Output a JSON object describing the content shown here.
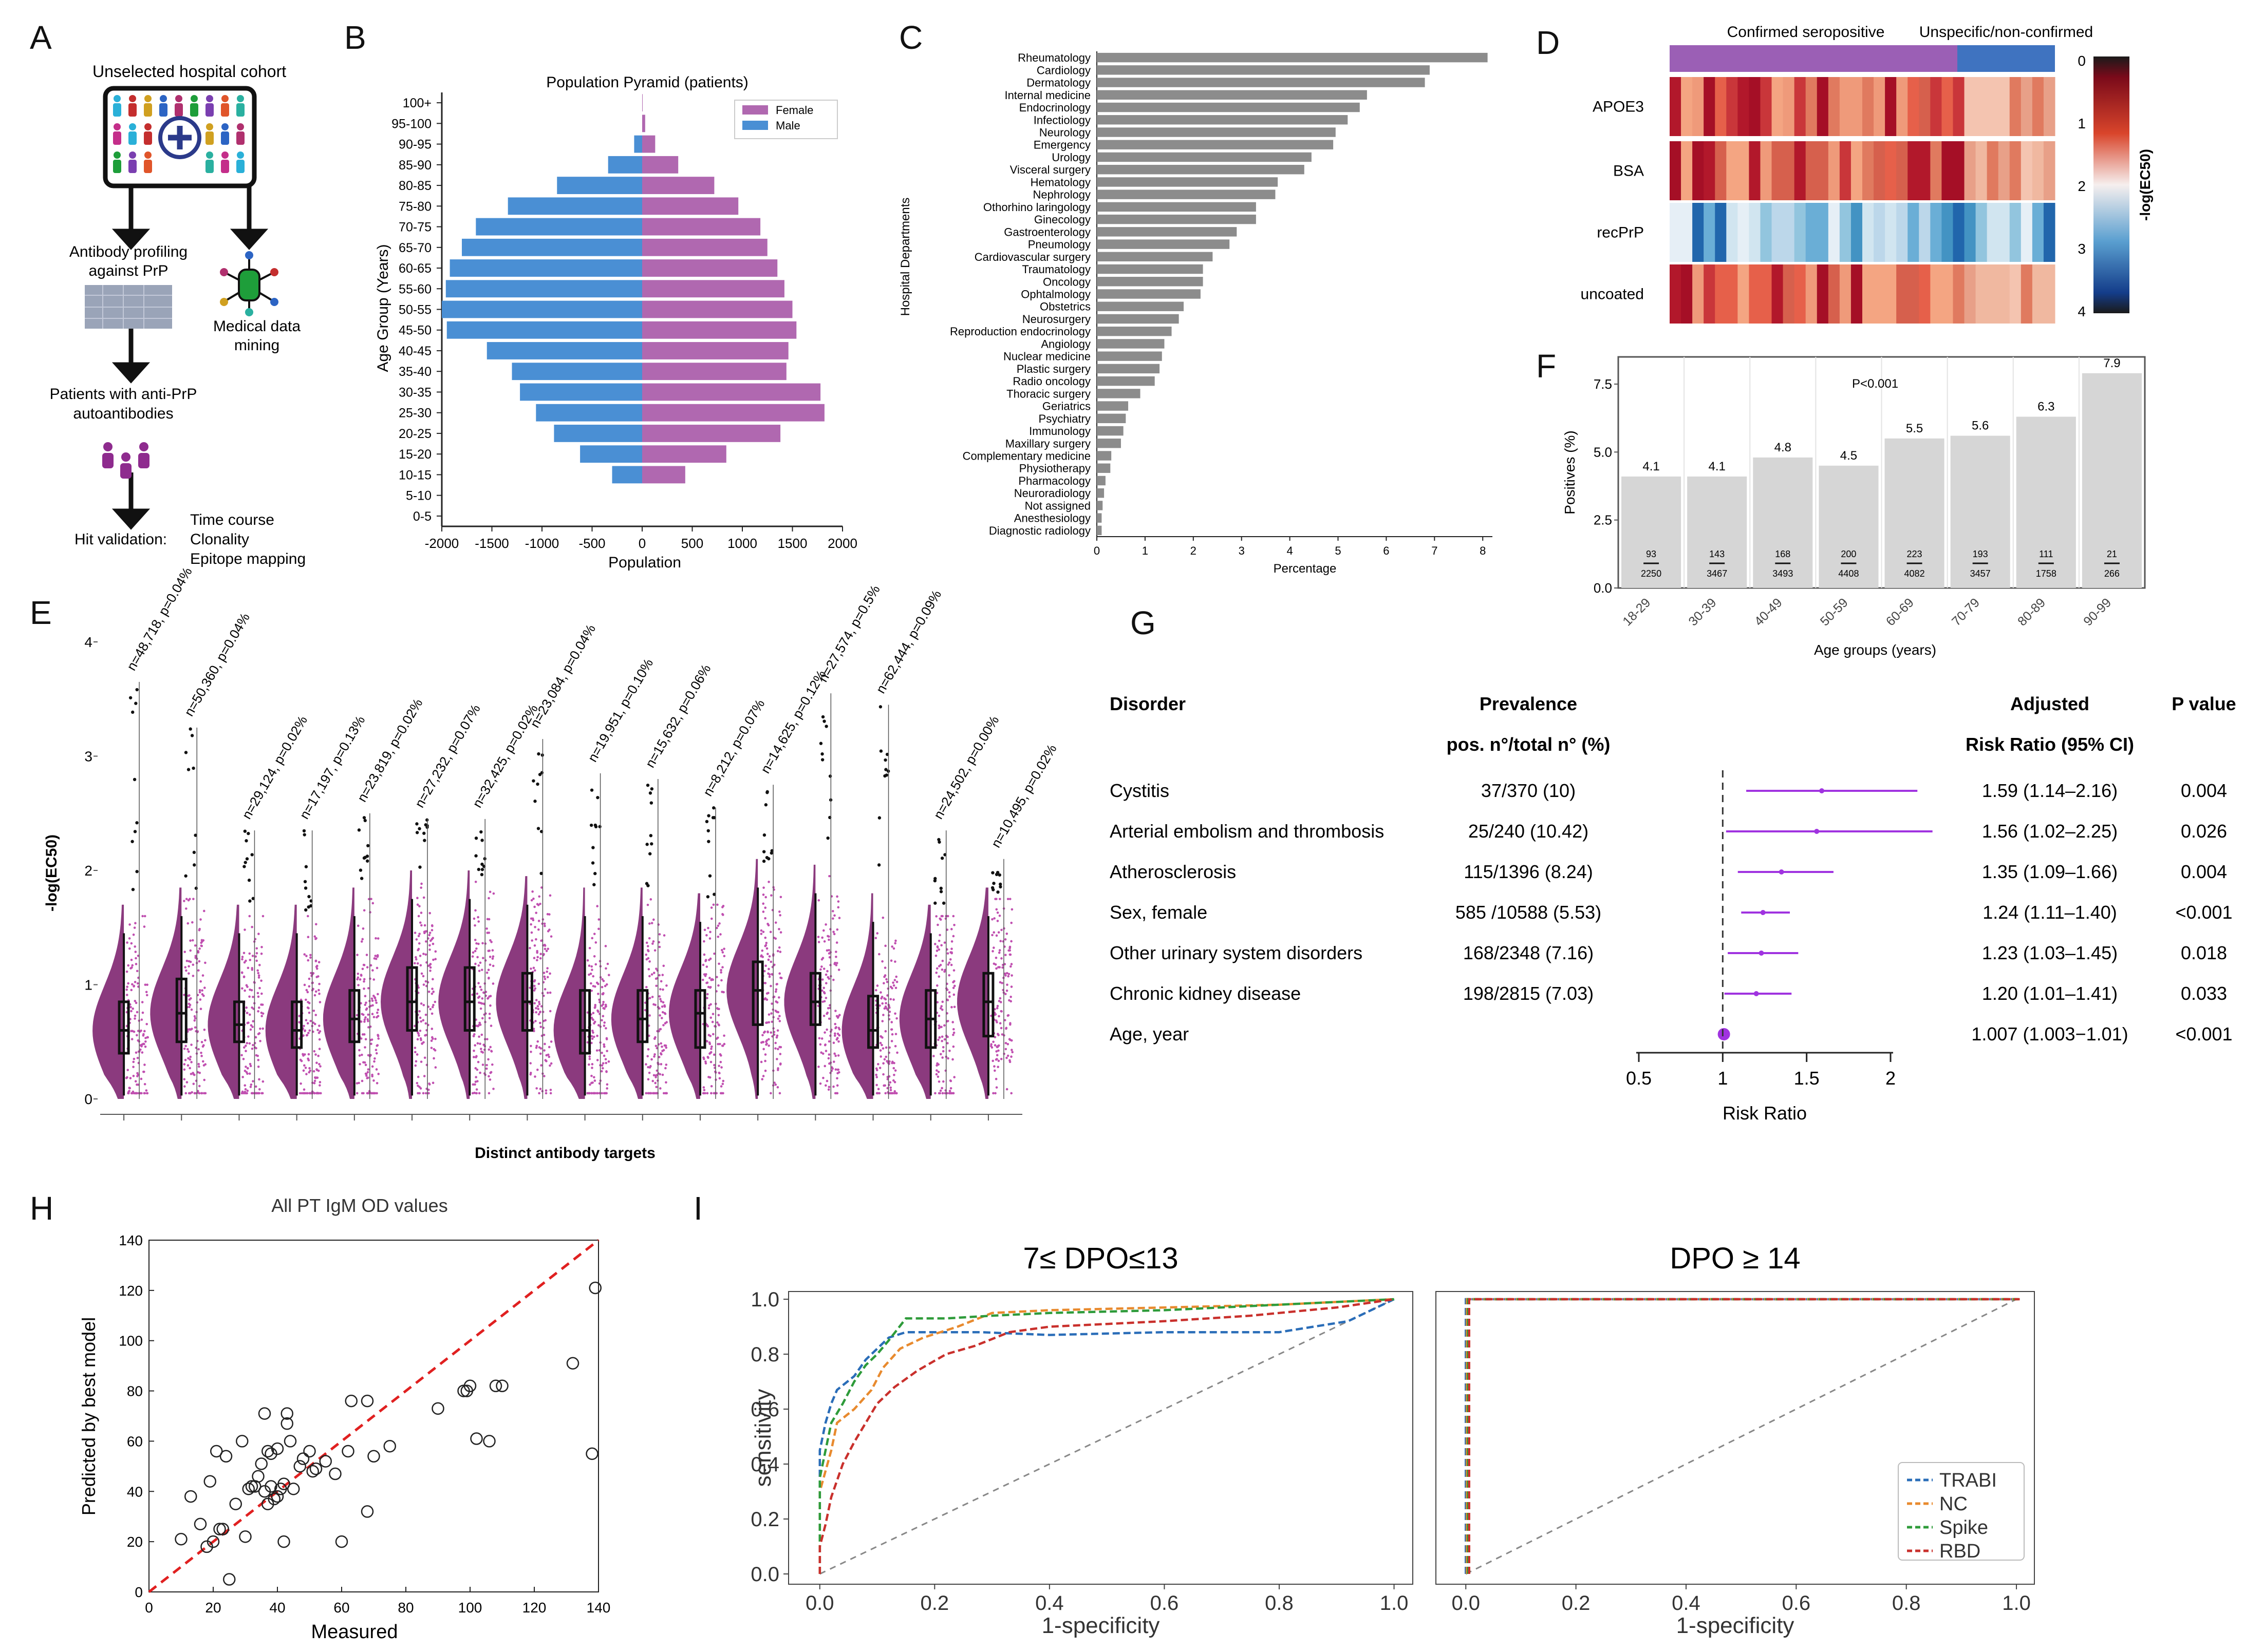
{
  "panels": [
    "A",
    "B",
    "C",
    "D",
    "E",
    "F",
    "G",
    "H",
    "I"
  ],
  "panelA": {
    "cohort_title": "Unselected hospital cohort",
    "antibody_profiling": [
      "Antibody profiling",
      "against PrP"
    ],
    "medical_data": [
      "Medical data",
      "mining"
    ],
    "patients_line": [
      "Patients with anti-PrP",
      "autoantibodies"
    ],
    "hit_validation": "Hit validation:",
    "validation_items": [
      "Time course",
      "Clonality",
      "Epitope mapping"
    ]
  },
  "chart_data": [
    {
      "id": "B",
      "type": "bar",
      "orientation": "horizontal-pyramid",
      "title": "Population Pyramid (patients)",
      "xlabel": "Population",
      "ylabel": "Age Group (Years)",
      "xlim": [
        -2000,
        2000
      ],
      "xticks": [
        "-2000",
        "-1500",
        "-1000",
        "-500",
        "0",
        "500",
        "1000",
        "1500",
        "2000"
      ],
      "categories": [
        "100+",
        "95-100",
        "90-95",
        "85-90",
        "80-85",
        "75-80",
        "70-75",
        "65-70",
        "60-65",
        "55-60",
        "50-55",
        "45-50",
        "40-45",
        "35-40",
        "30-35",
        "25-30",
        "20-25",
        "15-20",
        "10-15",
        "5-10",
        "0-5"
      ],
      "series": [
        {
          "name": "Female",
          "color": "#b068b0",
          "values": [
            5,
            30,
            130,
            360,
            720,
            960,
            1180,
            1250,
            1350,
            1420,
            1500,
            1540,
            1460,
            1440,
            1780,
            1820,
            1380,
            840,
            430,
            0,
            0
          ]
        },
        {
          "name": "Male",
          "color": "#4a8fd4",
          "values": [
            0,
            0,
            80,
            340,
            850,
            1340,
            1660,
            1800,
            1920,
            1960,
            2000,
            1950,
            1550,
            1300,
            1220,
            1060,
            880,
            620,
            300,
            0,
            0
          ]
        }
      ],
      "legend": "top-right"
    },
    {
      "id": "C",
      "type": "bar",
      "orientation": "horizontal",
      "xlabel": "Percentage",
      "ylabel": "Hospital Departments",
      "xlim": [
        0,
        8.2
      ],
      "xticks": [
        "0",
        "1",
        "2",
        "3",
        "4",
        "5",
        "6",
        "7",
        "8"
      ],
      "categories": [
        "Rheumatology",
        "Cardiology",
        "Dermatology",
        "Internal medicine",
        "Endocrinology",
        "Infectiology",
        "Neurology",
        "Emergency",
        "Urology",
        "Visceral surgery",
        "Hematology",
        "Nephrology",
        "Othorhino laringology",
        "Ginecology",
        "Gastroenterology",
        "Pneumology",
        "Cardiovascular surgery",
        "Traumatology",
        "Oncology",
        "Ophtalmology",
        "Obstetrics",
        "Neurosurgery",
        "Reproduction endocrinology",
        "Angiology",
        "Nuclear medicine",
        "Plastic surgery",
        "Radio oncology",
        "Thoracic surgery",
        "Geriatrics",
        "Psychiatry",
        "Immunology",
        "Maxillary surgery",
        "Complementary medicine",
        "Physiotherapy",
        "Pharmacology",
        "Neuroradiology",
        "Not assigned",
        "Anesthesiology",
        "Diagnostic radiology"
      ],
      "values": [
        8.1,
        6.9,
        6.8,
        5.6,
        5.45,
        5.2,
        4.95,
        4.9,
        4.45,
        4.3,
        3.75,
        3.7,
        3.3,
        3.3,
        2.9,
        2.75,
        2.4,
        2.2,
        2.2,
        2.15,
        1.8,
        1.7,
        1.55,
        1.4,
        1.35,
        1.3,
        1.2,
        0.9,
        0.65,
        0.6,
        0.55,
        0.5,
        0.3,
        0.28,
        0.18,
        0.15,
        0.12,
        0.1,
        0.1
      ],
      "color": "#8c8c8c"
    },
    {
      "id": "D",
      "type": "violin-box",
      "xlabel": "Distinct antibody targets",
      "ylabel": "-log(EC50)",
      "ylim": [
        0,
        4
      ],
      "yticks": [
        "0",
        "1",
        "2",
        "3",
        "4"
      ],
      "annotations": [
        "n=48,718, p=0.04%",
        "n=50,360, p=0.04%",
        "n=29,124, p=0.02%",
        "n=17,197, p=0.13%",
        "n=23,819, p=0.02%",
        "n=27,232, p=0.07%",
        "n=32,425, p=0.02%",
        "n=23,084, p=0.04%",
        "n=19,951, p=0.10%",
        "n=15,632, p=0.06%",
        "n=8,212, p=0.07%",
        "n=14,625, p=0.12%",
        "n=27,574, p=0.5%",
        "n=62,444, p=0.09%",
        "n=24,502, p=0.00%",
        "n=10,495, p=0.02%"
      ],
      "median": [
        0.6,
        0.75,
        0.65,
        0.6,
        0.7,
        0.85,
        0.85,
        0.85,
        0.6,
        0.7,
        0.75,
        0.95,
        0.85,
        0.6,
        0.7,
        0.85
      ],
      "q1": [
        0.4,
        0.5,
        0.5,
        0.45,
        0.5,
        0.6,
        0.6,
        0.6,
        0.4,
        0.5,
        0.45,
        0.65,
        0.65,
        0.45,
        0.45,
        0.55
      ],
      "q3": [
        0.85,
        1.05,
        0.85,
        0.85,
        0.95,
        1.15,
        1.15,
        1.1,
        0.95,
        0.95,
        0.95,
        1.2,
        1.1,
        0.9,
        0.95,
        1.1
      ],
      "whisker_top": [
        1.45,
        1.6,
        1.45,
        1.45,
        1.6,
        1.75,
        1.75,
        1.7,
        1.6,
        1.6,
        1.55,
        1.85,
        1.8,
        1.55,
        1.45,
        1.6
      ],
      "max_outlier": [
        3.65,
        3.25,
        2.35,
        2.35,
        2.5,
        2.45,
        2.45,
        3.15,
        2.85,
        2.8,
        2.55,
        2.75,
        3.55,
        3.45,
        2.35,
        2.1
      ],
      "color": "#8b3a7e"
    },
    {
      "id": "E",
      "type": "heatmap",
      "rows": [
        "APOE3",
        "BSA",
        "recPrP",
        "uncoated"
      ],
      "column_groups": [
        {
          "name": "Confirmed seropositive",
          "color": "#9b5fb5"
        },
        {
          "name": "Unspecific/non-confirmed",
          "color": "#3f73c0"
        }
      ],
      "colorbar_label": "-log(EC50)",
      "colorbar_ticks": [
        "0",
        "1",
        "2",
        "3",
        "4"
      ]
    },
    {
      "id": "F",
      "type": "bar",
      "title": "",
      "annotation": "P<0.001",
      "xlabel": "Age groups (years)",
      "ylabel": "Positives (%)",
      "ylim": [
        0,
        8.5
      ],
      "yticks": [
        "0.0",
        "2.5",
        "5.0",
        "7.5"
      ],
      "categories": [
        "18-29",
        "30-39",
        "40-49",
        "50-59",
        "60-69",
        "70-79",
        "80-89",
        "90-99"
      ],
      "values": [
        4.1,
        4.1,
        4.8,
        4.5,
        5.5,
        5.6,
        6.3,
        7.9
      ],
      "value_labels": [
        "4.1",
        "4.1",
        "4.8",
        "4.5",
        "5.5",
        "5.6",
        "6.3",
        "7.9"
      ],
      "numerators": [
        "93",
        "143",
        "168",
        "200",
        "223",
        "193",
        "111",
        "21"
      ],
      "denominators": [
        "2250",
        "3467",
        "3493",
        "4408",
        "4082",
        "3457",
        "1758",
        "266"
      ],
      "color": "#d6d6d6"
    },
    {
      "id": "G",
      "type": "forest",
      "headers": {
        "disorder": "Disorder",
        "prevalence": "Prevalence",
        "prevalence_sub": "pos. n°/total n° (%)",
        "rr": "Adjusted",
        "rr_sub": "Risk Ratio (95% CI)",
        "p": "P value"
      },
      "xlabel": "Risk Ratio",
      "xlim": [
        0.5,
        2
      ],
      "xticks": [
        "0.5",
        "1",
        "1.5",
        "2"
      ],
      "rows": [
        {
          "disorder": "Cystitis",
          "prevalence": "37/370 (10)",
          "rr_text": "1.59 (1.14–2.16)",
          "p": "0.004",
          "rr": 1.59,
          "lo": 1.14,
          "hi": 2.16
        },
        {
          "disorder": "Arterial embolism and thrombosis",
          "prevalence": "25/240 (10.42)",
          "rr_text": "1.56 (1.02–2.25)",
          "p": "0.026",
          "rr": 1.56,
          "lo": 1.02,
          "hi": 2.25
        },
        {
          "disorder": "Atherosclerosis",
          "prevalence": "115/1396 (8.24)",
          "rr_text": "1.35 (1.09–1.66)",
          "p": "0.004",
          "rr": 1.35,
          "lo": 1.09,
          "hi": 1.66
        },
        {
          "disorder": "Sex, female",
          "prevalence": "585 /10588 (5.53)",
          "rr_text": "1.24 (1.11–1.40)",
          "p": "<0.001",
          "rr": 1.24,
          "lo": 1.11,
          "hi": 1.4
        },
        {
          "disorder": "Other urinary system disorders",
          "prevalence": "168/2348 (7.16)",
          "rr_text": "1.23 (1.03–1.45)",
          "p": "0.018",
          "rr": 1.23,
          "lo": 1.03,
          "hi": 1.45
        },
        {
          "disorder": "Chronic kidney disease",
          "prevalence": "198/2815 (7.03)",
          "rr_text": "1.20 (1.01–1.41)",
          "p": "0.033",
          "rr": 1.2,
          "lo": 1.01,
          "hi": 1.41
        },
        {
          "disorder": "Age, year",
          "prevalence": "",
          "rr_text": "1.007 (1.003−1.01)",
          "p": "<0.001",
          "rr": 1.007,
          "lo": 1.003,
          "hi": 1.01
        }
      ],
      "color": "#a033e0"
    },
    {
      "id": "H",
      "type": "scatter",
      "title": "All PT IgM OD values",
      "xlabel": "Measured",
      "ylabel": "Predicted by best model",
      "xlim": [
        0,
        140
      ],
      "ylim": [
        0,
        140
      ],
      "xticks": [
        "0",
        "20",
        "40",
        "60",
        "80",
        "100",
        "120",
        "140"
      ],
      "yticks": [
        "0",
        "20",
        "40",
        "60",
        "80",
        "100",
        "120",
        "140"
      ],
      "points": [
        [
          10,
          21
        ],
        [
          13,
          38
        ],
        [
          16,
          27
        ],
        [
          18,
          18
        ],
        [
          19,
          44
        ],
        [
          20,
          20
        ],
        [
          21,
          56
        ],
        [
          22,
          25
        ],
        [
          23,
          25
        ],
        [
          24,
          54
        ],
        [
          25,
          5
        ],
        [
          27,
          35
        ],
        [
          29,
          60
        ],
        [
          30,
          22
        ],
        [
          31,
          41
        ],
        [
          32,
          42
        ],
        [
          33,
          42
        ],
        [
          34,
          46
        ],
        [
          35,
          51
        ],
        [
          36,
          40
        ],
        [
          36,
          71
        ],
        [
          37,
          56
        ],
        [
          37,
          35
        ],
        [
          38,
          55
        ],
        [
          38,
          42
        ],
        [
          39,
          37
        ],
        [
          40,
          57
        ],
        [
          40,
          38
        ],
        [
          41,
          41
        ],
        [
          42,
          20
        ],
        [
          42,
          43
        ],
        [
          43,
          71
        ],
        [
          43,
          67
        ],
        [
          44,
          60
        ],
        [
          45,
          41
        ],
        [
          47,
          50
        ],
        [
          48,
          53
        ],
        [
          50,
          56
        ],
        [
          51,
          48
        ],
        [
          52,
          49
        ],
        [
          55,
          52
        ],
        [
          58,
          47
        ],
        [
          60,
          20
        ],
        [
          62,
          56
        ],
        [
          63,
          76
        ],
        [
          68,
          32
        ],
        [
          68,
          76
        ],
        [
          70,
          54
        ],
        [
          75,
          58
        ],
        [
          90,
          73
        ],
        [
          98,
          80
        ],
        [
          99,
          80
        ],
        [
          100,
          82
        ],
        [
          102,
          61
        ],
        [
          106,
          60
        ],
        [
          108,
          82
        ],
        [
          110,
          82
        ],
        [
          132,
          91
        ],
        [
          138,
          55
        ],
        [
          139,
          121
        ]
      ],
      "reference_line": "y = x"
    },
    {
      "id": "I",
      "type": "line",
      "subplots": [
        {
          "title": "7≤ DPO≤13",
          "xlabel": "1-specificity",
          "ylabel": "sensitivity"
        },
        {
          "title": "DPO ≥ 14",
          "xlabel": "1-specificity",
          "ylabel": ""
        }
      ],
      "xlim": [
        0,
        1
      ],
      "ylim": [
        0,
        1
      ],
      "xticks": [
        "0.0",
        "0.2",
        "0.4",
        "0.6",
        "0.8",
        "1.0"
      ],
      "yticks": [
        "0.0",
        "0.2",
        "0.4",
        "0.6",
        "0.8",
        "1.0"
      ],
      "legend": "bottom-right",
      "series": [
        {
          "name": "TRABI",
          "color": "#2a6db8",
          "roc_early": [
            [
              0,
              0
            ],
            [
              0,
              0.45
            ],
            [
              0.01,
              0.55
            ],
            [
              0.02,
              0.62
            ],
            [
              0.03,
              0.67
            ],
            [
              0.06,
              0.72
            ],
            [
              0.08,
              0.78
            ],
            [
              0.1,
              0.82
            ],
            [
              0.12,
              0.86
            ],
            [
              0.15,
              0.88
            ],
            [
              0.2,
              0.88
            ],
            [
              0.28,
              0.88
            ],
            [
              0.4,
              0.87
            ],
            [
              0.6,
              0.88
            ],
            [
              0.8,
              0.88
            ],
            [
              0.92,
              0.92
            ],
            [
              1,
              1
            ]
          ],
          "roc_late": [
            [
              0,
              0
            ],
            [
              0,
              1
            ],
            [
              1,
              1
            ]
          ]
        },
        {
          "name": "NC",
          "color": "#e88a2e",
          "roc_early": [
            [
              0,
              0
            ],
            [
              0,
              0.3
            ],
            [
              0.02,
              0.45
            ],
            [
              0.03,
              0.55
            ],
            [
              0.06,
              0.6
            ],
            [
              0.09,
              0.67
            ],
            [
              0.11,
              0.75
            ],
            [
              0.14,
              0.82
            ],
            [
              0.18,
              0.86
            ],
            [
              0.24,
              0.9
            ],
            [
              0.3,
              0.95
            ],
            [
              0.4,
              0.96
            ],
            [
              0.6,
              0.97
            ],
            [
              0.8,
              0.98
            ],
            [
              1,
              1
            ]
          ],
          "roc_late": [
            [
              0,
              0
            ],
            [
              0,
              1
            ],
            [
              1,
              1
            ]
          ]
        },
        {
          "name": "Spike",
          "color": "#2e9b3a",
          "roc_early": [
            [
              0,
              0
            ],
            [
              0,
              0.35
            ],
            [
              0.02,
              0.55
            ],
            [
              0.04,
              0.62
            ],
            [
              0.06,
              0.7
            ],
            [
              0.08,
              0.76
            ],
            [
              0.1,
              0.8
            ],
            [
              0.12,
              0.85
            ],
            [
              0.15,
              0.93
            ],
            [
              0.22,
              0.93
            ],
            [
              0.3,
              0.94
            ],
            [
              0.4,
              0.95
            ],
            [
              0.6,
              0.96
            ],
            [
              0.8,
              0.98
            ],
            [
              1,
              1
            ]
          ],
          "roc_late": [
            [
              0,
              0
            ],
            [
              0,
              1
            ],
            [
              1,
              1
            ]
          ]
        },
        {
          "name": "RBD",
          "color": "#c9302c",
          "roc_early": [
            [
              0,
              0
            ],
            [
              0,
              0.1
            ],
            [
              0.01,
              0.18
            ],
            [
              0.02,
              0.28
            ],
            [
              0.04,
              0.4
            ],
            [
              0.06,
              0.48
            ],
            [
              0.08,
              0.55
            ],
            [
              0.1,
              0.62
            ],
            [
              0.13,
              0.68
            ],
            [
              0.17,
              0.74
            ],
            [
              0.22,
              0.8
            ],
            [
              0.27,
              0.83
            ],
            [
              0.33,
              0.88
            ],
            [
              0.4,
              0.9
            ],
            [
              0.5,
              0.91
            ],
            [
              0.6,
              0.92
            ],
            [
              0.75,
              0.94
            ],
            [
              0.9,
              0.97
            ],
            [
              1,
              1
            ]
          ],
          "roc_late": [
            [
              0,
              0
            ],
            [
              0,
              1
            ],
            [
              1,
              1
            ]
          ]
        }
      ]
    }
  ]
}
